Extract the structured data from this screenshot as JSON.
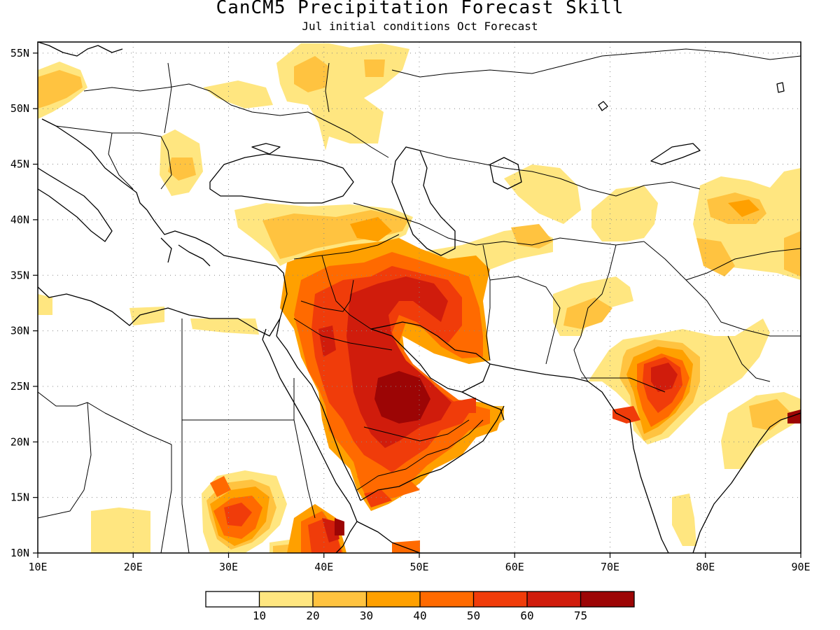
{
  "title": "CanCM5 Precipitation Forecast Skill",
  "subtitle": "Jul initial conditions  Oct Forecast",
  "map": {
    "lon_range": [
      10,
      90
    ],
    "lat_range": [
      10,
      56
    ],
    "lon_ticks": [
      "10E",
      "20E",
      "30E",
      "40E",
      "50E",
      "60E",
      "70E",
      "80E",
      "90E"
    ],
    "lat_ticks": [
      "10N",
      "15N",
      "20N",
      "25N",
      "30N",
      "35N",
      "40N",
      "45N",
      "50N",
      "55N"
    ],
    "grid": "dotted"
  },
  "colorbar": {
    "labels": [
      "10",
      "20",
      "30",
      "40",
      "50",
      "60",
      "75"
    ],
    "colors": [
      "#ffffff",
      "#ffe680",
      "#ffc340",
      "#ffa000",
      "#ff6a00",
      "#f03c0a",
      "#d01c0c",
      "#9c0505"
    ]
  }
}
